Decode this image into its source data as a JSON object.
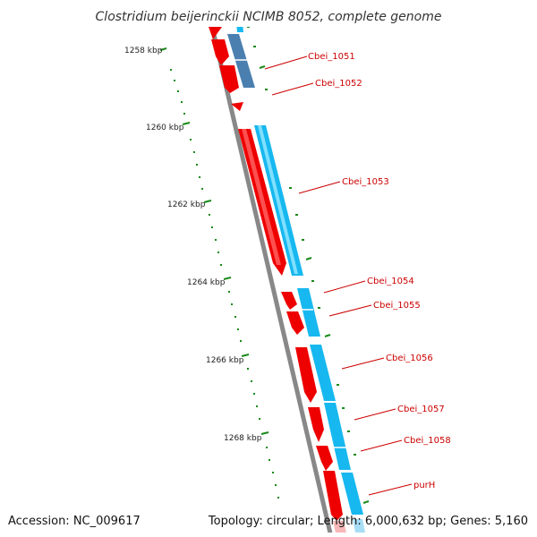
{
  "title": "Clostridium beijerinckii NCIMB 8052, complete genome",
  "accession": "Accession: NC_009617",
  "topology": "Topology: circular; Length: 6,000,632 bp; Genes: 5,160",
  "ruler": {
    "labels": [
      "1258 kbp",
      "1260 kbp",
      "1262 kbp",
      "1264 kbp",
      "1266 kbp",
      "1268 kbp"
    ],
    "tick_color": "#1a8a1a"
  },
  "genes": [
    {
      "name": "Cbei_1051"
    },
    {
      "name": "Cbei_1052"
    },
    {
      "name": "Cbei_1053"
    },
    {
      "name": "Cbei_1054"
    },
    {
      "name": "Cbei_1055"
    },
    {
      "name": "Cbei_1056"
    },
    {
      "name": "Cbei_1057"
    },
    {
      "name": "Cbei_1058"
    },
    {
      "name": "purH"
    }
  ],
  "colors": {
    "backbone": "#888888",
    "cds": "#ee0000",
    "gene": "#17b8ef",
    "gene_dark": "#4a7fb0",
    "label": "#cc0000",
    "ruler": "#1a8a1a"
  }
}
